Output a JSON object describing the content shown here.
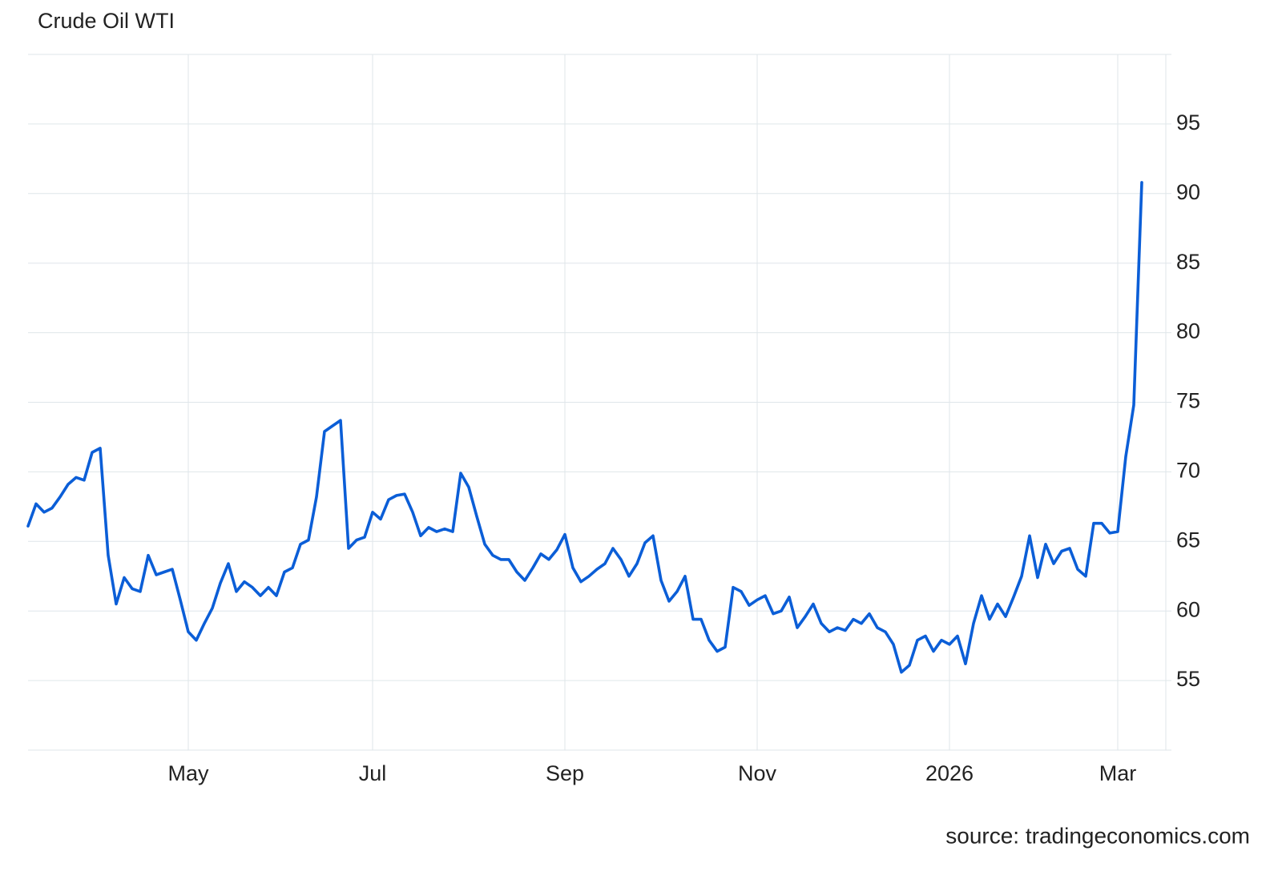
{
  "chart_data": {
    "type": "line",
    "title": "Crude Oil WTI",
    "source": "source: tradingeconomics.com",
    "categories": [
      null,
      null,
      null,
      null,
      null,
      null,
      null,
      null,
      null,
      null,
      null,
      null,
      null,
      null,
      null,
      null,
      null,
      null,
      null,
      null,
      "May",
      null,
      null,
      null,
      null,
      null,
      null,
      null,
      null,
      null,
      null,
      null,
      null,
      null,
      null,
      null,
      null,
      null,
      null,
      null,
      null,
      null,
      null,
      "Jul",
      null,
      null,
      null,
      null,
      null,
      null,
      null,
      null,
      null,
      null,
      null,
      null,
      null,
      null,
      null,
      null,
      null,
      null,
      null,
      null,
      null,
      null,
      null,
      "Sep",
      null,
      null,
      null,
      null,
      null,
      null,
      null,
      null,
      null,
      null,
      null,
      null,
      null,
      null,
      null,
      null,
      null,
      null,
      null,
      null,
      null,
      null,
      null,
      "Nov",
      null,
      null,
      null,
      null,
      null,
      null,
      null,
      null,
      null,
      null,
      null,
      null,
      null,
      null,
      null,
      null,
      null,
      null,
      null,
      null,
      null,
      null,
      null,
      "2026",
      null,
      null,
      null,
      null,
      null,
      null,
      null,
      null,
      null,
      null,
      null,
      null,
      null,
      null,
      null,
      null,
      null,
      null,
      null,
      null,
      "Mar",
      null,
      null,
      null
    ],
    "values": [
      66.1,
      67.7,
      67.1,
      67.4,
      68.2,
      69.1,
      69.6,
      69.4,
      71.4,
      71.7,
      64.0,
      60.5,
      62.4,
      61.6,
      61.4,
      64.0,
      62.6,
      62.8,
      63.0,
      60.8,
      58.5,
      57.9,
      59.1,
      60.2,
      62.0,
      63.4,
      61.4,
      62.1,
      61.7,
      61.1,
      61.7,
      61.1,
      62.8,
      63.1,
      64.8,
      65.1,
      68.2,
      72.9,
      73.3,
      73.7,
      64.5,
      65.1,
      65.3,
      67.1,
      66.6,
      68.0,
      68.3,
      68.4,
      67.1,
      65.4,
      66.0,
      65.7,
      65.9,
      65.7,
      69.9,
      68.9,
      66.8,
      64.8,
      64.0,
      63.7,
      63.7,
      62.8,
      62.2,
      63.1,
      64.1,
      63.7,
      64.4,
      65.5,
      63.1,
      62.1,
      62.5,
      63.0,
      63.4,
      64.5,
      63.7,
      62.5,
      63.4,
      64.9,
      65.4,
      62.2,
      60.7,
      61.4,
      62.5,
      59.4,
      59.4,
      57.9,
      57.1,
      57.4,
      61.7,
      61.4,
      60.4,
      60.8,
      61.1,
      59.8,
      60.0,
      61.0,
      58.8,
      59.6,
      60.5,
      59.1,
      58.5,
      58.8,
      58.6,
      59.4,
      59.1,
      59.8,
      58.8,
      58.5,
      57.6,
      55.6,
      56.1,
      57.9,
      58.2,
      57.1,
      57.9,
      57.6,
      58.2,
      56.2,
      59.1,
      61.1,
      59.4,
      60.5,
      59.6,
      61.0,
      62.5,
      65.4,
      62.4,
      64.8,
      63.4,
      64.3,
      64.5,
      63.0,
      62.5,
      66.3,
      66.3,
      65.6,
      65.7,
      71.1,
      74.8,
      90.8
    ],
    "color": "#0b5ed7",
    "ylim": [
      50,
      100
    ],
    "yticks": [
      55,
      60,
      65,
      70,
      75,
      80,
      85,
      90,
      95
    ],
    "grid": true
  }
}
